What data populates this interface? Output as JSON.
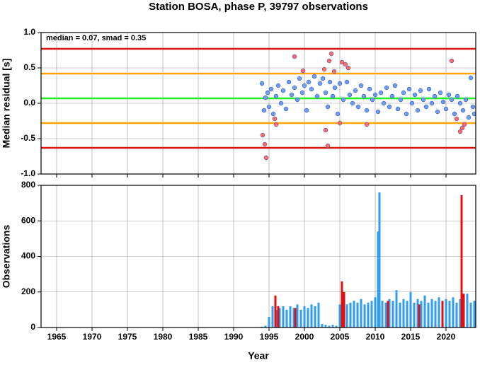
{
  "title": "Station BOSA, phase P, 39797 observations",
  "chart_data": [
    {
      "type": "scatter",
      "ylabel": "Median residual [s]",
      "annotation": "median = 0.07, smad = 0.35",
      "xlim": [
        1962.8,
        2024.2
      ],
      "xticks": [
        1965,
        1970,
        1975,
        1980,
        1985,
        1990,
        1995,
        2000,
        2005,
        2010,
        2015,
        2020
      ],
      "ylim": [
        -1,
        1
      ],
      "yticks": [
        {
          "value": -1,
          "label": "-1.0"
        },
        -0.5,
        {
          "value": 0,
          "label": "0.0"
        },
        0.5,
        {
          "value": 1,
          "label": "1.0"
        }
      ],
      "grid": true,
      "hlines": [
        {
          "value": 0.77,
          "color": "#dd1111"
        },
        {
          "value": 0.42,
          "color": "#ffa500"
        },
        {
          "value": 0.07,
          "color": "#22ee22"
        },
        {
          "value": -0.28,
          "color": "#ffa500"
        },
        {
          "value": -0.63,
          "color": "#dd1111"
        }
      ],
      "series": [
        {
          "color": "#6f9cf0",
          "x": [
            1994.0,
            1994.3,
            1994.5,
            1994.8,
            1995.0,
            1995.3,
            1995.6,
            1996.0,
            1996.3,
            1996.7,
            1997.0,
            1997.4,
            1997.8,
            1998.2,
            1998.6,
            1999.0,
            1999.3,
            1999.7,
            2000.0,
            2000.3,
            2000.6,
            2001.0,
            2001.4,
            2001.8,
            2002.2,
            2002.6,
            2003.0,
            2003.3,
            2003.6,
            2004.0,
            2004.3,
            2004.7,
            2005.0,
            2005.5,
            2006.0,
            2006.4,
            2006.8,
            2007.2,
            2007.6,
            2008.0,
            2008.4,
            2008.8,
            2009.2,
            2009.6,
            2010.0,
            2010.4,
            2010.8,
            2011.2,
            2011.6,
            2012.0,
            2012.4,
            2012.8,
            2013.2,
            2013.6,
            2014.0,
            2014.4,
            2014.8,
            2015.2,
            2015.6,
            2016.0,
            2016.4,
            2016.8,
            2017.2,
            2017.6,
            2018.0,
            2018.4,
            2018.8,
            2019.2,
            2019.6,
            2020.0,
            2020.4,
            2020.8,
            2021.2,
            2021.6,
            2022.0,
            2022.4,
            2022.8,
            2023.2,
            2023.5,
            2023.8,
            2024.0
          ],
          "values": [
            0.28,
            -0.1,
            0.08,
            0.15,
            -0.05,
            0.2,
            -0.15,
            0.1,
            0.25,
            0.0,
            0.18,
            -0.08,
            0.3,
            0.12,
            0.22,
            0.05,
            0.35,
            0.15,
            0.25,
            -0.1,
            0.3,
            0.2,
            0.38,
            0.1,
            0.28,
            0.35,
            0.15,
            -0.05,
            0.3,
            0.1,
            0.22,
            -0.15,
            0.28,
            0.05,
            0.3,
            0.12,
            0.0,
            0.18,
            -0.05,
            0.25,
            0.1,
            -0.1,
            0.2,
            0.05,
            0.12,
            -0.12,
            0.15,
            0.0,
            0.22,
            -0.05,
            0.1,
            0.25,
            -0.08,
            0.05,
            0.15,
            -0.15,
            0.2,
            0.0,
            0.12,
            -0.1,
            0.18,
            0.05,
            -0.05,
            0.2,
            0.0,
            0.1,
            -0.12,
            0.15,
            0.02,
            -0.08,
            0.12,
            0.05,
            -0.15,
            0.1,
            0.0,
            -0.1,
            0.05,
            -0.2,
            0.36,
            -0.05,
            -0.15
          ]
        },
        {
          "color": "#ff6a6a",
          "x": [
            1994.1,
            1994.4,
            1994.6,
            1995.8,
            1996.0,
            1998.6,
            1999.8,
            2002.8,
            2003.0,
            2003.3,
            2003.5,
            2003.8,
            2004.2,
            2005.0,
            2005.3,
            2005.8,
            2006.2,
            2008.8,
            2020.8,
            2021.5,
            2022.0,
            2022.3,
            2022.6
          ],
          "values": [
            -0.45,
            -0.58,
            -0.77,
            -0.22,
            -0.3,
            0.66,
            0.46,
            0.48,
            -0.38,
            -0.6,
            0.6,
            0.7,
            0.45,
            -0.28,
            0.58,
            0.55,
            0.5,
            -0.3,
            0.6,
            -0.22,
            -0.4,
            -0.35,
            -0.3
          ]
        }
      ]
    },
    {
      "type": "bar",
      "xlabel": "Year",
      "ylabel": "Observations",
      "xlim": [
        1962.8,
        2024.2
      ],
      "xticks": [
        1965,
        1970,
        1975,
        1980,
        1985,
        1990,
        1995,
        2000,
        2005,
        2010,
        2015,
        2020
      ],
      "ylim": [
        0,
        800
      ],
      "yticks": [
        0,
        200,
        400,
        600,
        800
      ],
      "grid": true,
      "series": [
        {
          "color": "#2f9df0",
          "x": [
            1994.0,
            1994.5,
            1995.0,
            1995.5,
            1996.0,
            1996.5,
            1997.0,
            1997.5,
            1998.0,
            1998.5,
            1999.0,
            1999.5,
            2000.0,
            2000.5,
            2001.0,
            2001.5,
            2002.0,
            2002.5,
            2003.0,
            2003.5,
            2004.0,
            2004.5,
            2005.0,
            2005.5,
            2006.0,
            2006.5,
            2007.0,
            2007.5,
            2008.0,
            2008.5,
            2009.0,
            2009.5,
            2010.0,
            2010.4,
            2010.6,
            2011.0,
            2011.5,
            2012.0,
            2012.5,
            2013.0,
            2013.5,
            2014.0,
            2014.5,
            2015.0,
            2015.5,
            2016.0,
            2016.5,
            2017.0,
            2017.5,
            2018.0,
            2018.5,
            2019.0,
            2019.5,
            2020.0,
            2020.5,
            2021.0,
            2021.5,
            2022.0,
            2022.5,
            2023.0,
            2023.5,
            2024.0
          ],
          "values": [
            5,
            10,
            60,
            120,
            100,
            110,
            120,
            100,
            120,
            110,
            130,
            100,
            120,
            110,
            130,
            120,
            140,
            20,
            15,
            10,
            15,
            10,
            130,
            150,
            130,
            140,
            150,
            140,
            160,
            130,
            140,
            150,
            170,
            540,
            760,
            150,
            140,
            160,
            150,
            210,
            140,
            160,
            150,
            200,
            140,
            160,
            150,
            180,
            140,
            160,
            150,
            170,
            140,
            160,
            150,
            170,
            140,
            160,
            150,
            190,
            140,
            150
          ]
        },
        {
          "color": "#dd1111",
          "x": [
            1995.9,
            1996.3,
            1998.7,
            2005.3,
            2005.6,
            2011.8,
            2016.2,
            2019.5,
            2022.2,
            2022.5
          ],
          "values": [
            180,
            120,
            110,
            260,
            200,
            150,
            130,
            150,
            745,
            190
          ]
        }
      ]
    }
  ]
}
